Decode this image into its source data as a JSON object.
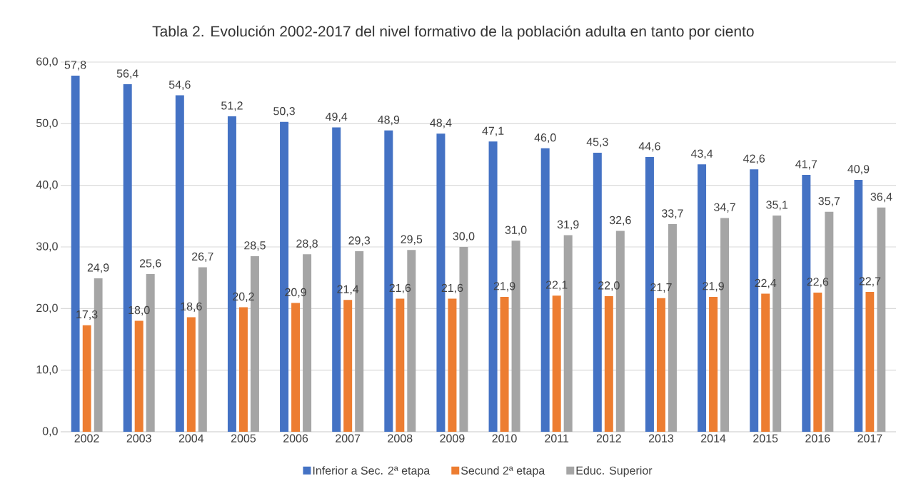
{
  "chart_data": {
    "type": "bar",
    "title": "Tabla 2. Evolución 2002-2017 del nivel formativo de la población adulta en tanto por ciento",
    "categories": [
      "2002",
      "2003",
      "2004",
      "2005",
      "2006",
      "2007",
      "2008",
      "2009",
      "2010",
      "2011",
      "2012",
      "2013",
      "2014",
      "2015",
      "2016",
      "2017"
    ],
    "series": [
      {
        "name": "Inferior a Sec. 2ª etapa",
        "color": "#4472c4",
        "values": [
          57.8,
          56.4,
          54.6,
          51.2,
          50.3,
          49.4,
          48.9,
          48.4,
          47.1,
          46.0,
          45.3,
          44.6,
          43.4,
          42.6,
          41.7,
          40.9
        ],
        "value_labels": [
          "57,8",
          "56,4",
          "54,6",
          "51,2",
          "50,3",
          "49,4",
          "48,9",
          "48,4",
          "47,1",
          "46,0",
          "45,3",
          "44,6",
          "43,4",
          "42,6",
          "41,7",
          "40,9"
        ]
      },
      {
        "name": "Secund 2ª etapa",
        "color": "#ed7d31",
        "values": [
          17.3,
          18.0,
          18.6,
          20.2,
          20.9,
          21.4,
          21.6,
          21.6,
          21.9,
          22.1,
          22.0,
          21.7,
          21.9,
          22.4,
          22.6,
          22.7
        ],
        "value_labels": [
          "17,3",
          "18,0",
          "18,6",
          "20,2",
          "20,9",
          "21,4",
          "21,6",
          "21,6",
          "21,9",
          "22,1",
          "22,0",
          "21,7",
          "21,9",
          "22,4",
          "22,6",
          "22,7"
        ]
      },
      {
        "name": "Educ. Superior",
        "color": "#a5a5a5",
        "values": [
          24.9,
          25.6,
          26.7,
          28.5,
          28.8,
          29.3,
          29.5,
          30.0,
          31.0,
          31.9,
          32.6,
          33.7,
          34.7,
          35.1,
          35.7,
          36.4
        ],
        "value_labels": [
          "24,9",
          "25,6",
          "26,7",
          "28,5",
          "28,8",
          "29,3",
          "29,5",
          "30,0",
          "31,0",
          "31,9",
          "32,6",
          "33,7",
          "34,7",
          "35,1",
          "35,7",
          "36,4"
        ]
      }
    ],
    "ylim": [
      0,
      60
    ],
    "yticks": [
      {
        "value": 0,
        "label": "0,0"
      },
      {
        "value": 10,
        "label": "10,0"
      },
      {
        "value": 20,
        "label": "20,0"
      },
      {
        "value": 30,
        "label": "30,0"
      },
      {
        "value": 40,
        "label": "40,0"
      },
      {
        "value": 50,
        "label": "50,0"
      },
      {
        "value": 60,
        "label": "60,0"
      }
    ],
    "grid": "y",
    "legend": "bottom"
  }
}
